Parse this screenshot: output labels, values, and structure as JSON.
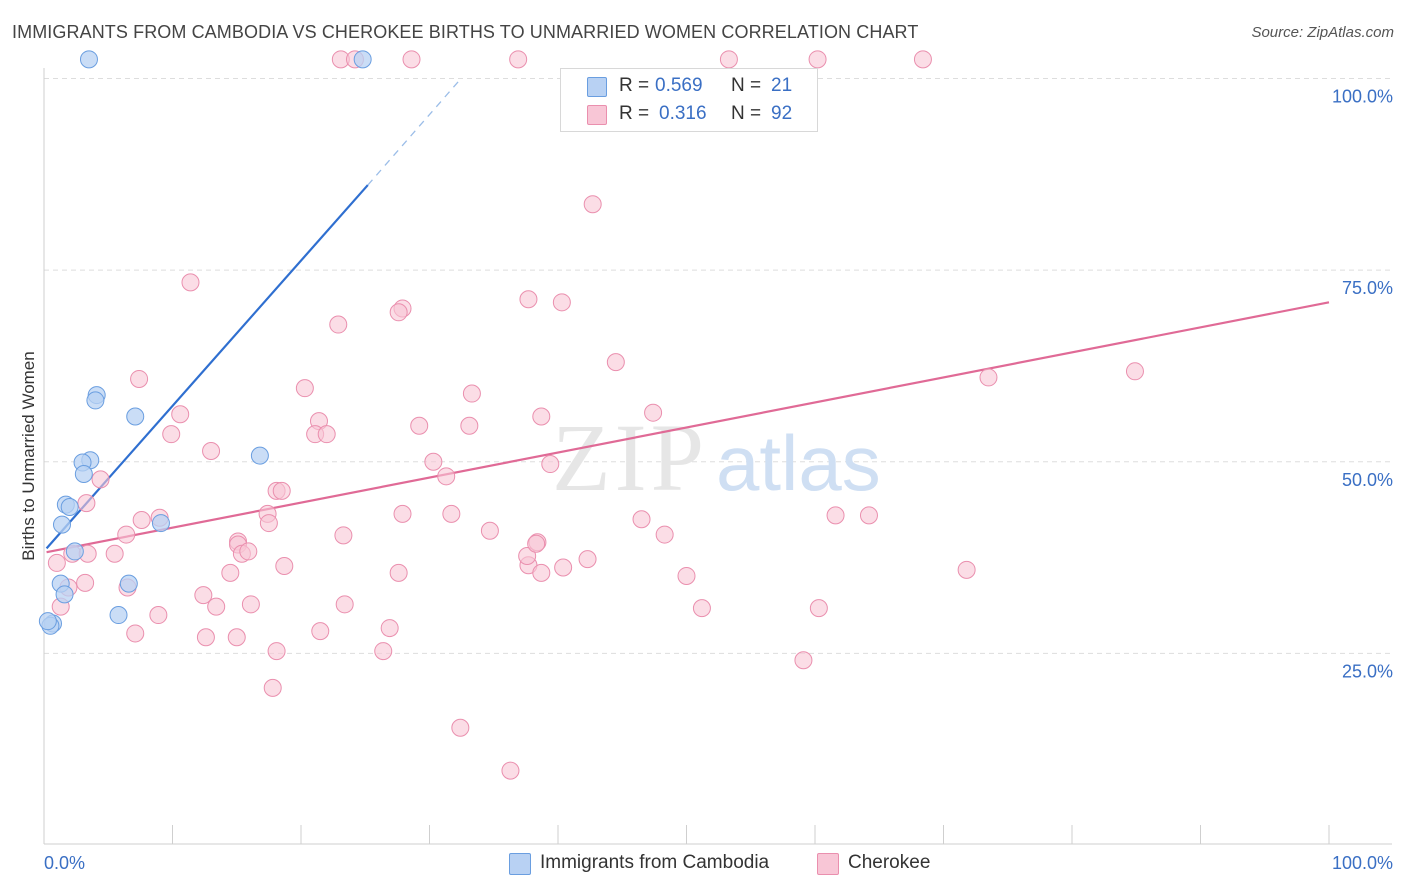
{
  "title": "IMMIGRANTS FROM CAMBODIA VS CHEROKEE BIRTHS TO UNMARRIED WOMEN CORRELATION CHART",
  "source": "Source: ZipAtlas.com",
  "watermark": {
    "zip": "ZIP",
    "atlas": "atlas"
  },
  "legend": {
    "r_label": "R =",
    "n_label": "N =",
    "series1": {
      "r": "0.569",
      "n": "21"
    },
    "series2": {
      "r": "0.316",
      "n": "92"
    }
  },
  "colors": {
    "cambodia_fill": "#b8d1f3",
    "cambodia_stroke": "#6a9ee0",
    "cambodia_line": "#2f6fd0",
    "cherokee_fill": "#f8c6d6",
    "cherokee_stroke": "#ea8fae",
    "cherokee_line": "#e06a96",
    "axis_text": "#3a6fc4",
    "grid": "#dddddd"
  },
  "chart_data": {
    "type": "scatter",
    "title": "IMMIGRANTS FROM CAMBODIA VS CHEROKEE BIRTHS TO UNMARRIED WOMEN CORRELATION CHART",
    "xlabel": "",
    "ylabel": "Births to Unmarried Women",
    "xlim": [
      0,
      100
    ],
    "ylim": [
      0,
      105
    ],
    "x_tick_labels": [
      "0.0%",
      "100.0%"
    ],
    "y_ticks": [
      25,
      50,
      75,
      100
    ],
    "y_tick_labels": [
      "25.0%",
      "50.0%",
      "75.0%",
      "100.0%"
    ],
    "grid": true,
    "legend_position": "top-center",
    "series": [
      {
        "name": "Immigrants from Cambodia",
        "r": 0.569,
        "n": 21,
        "points": [
          [
            3.5,
            102.5
          ],
          [
            24.8,
            102.5
          ],
          [
            4.1,
            58.7
          ],
          [
            4.0,
            58.0
          ],
          [
            7.1,
            55.9
          ],
          [
            16.8,
            50.8
          ],
          [
            3.6,
            50.2
          ],
          [
            3.0,
            49.9
          ],
          [
            3.1,
            48.4
          ],
          [
            1.7,
            44.4
          ],
          [
            2.0,
            44.1
          ],
          [
            9.1,
            42.0
          ],
          [
            1.4,
            41.8
          ],
          [
            2.4,
            38.3
          ],
          [
            1.3,
            34.1
          ],
          [
            1.6,
            32.7
          ],
          [
            6.6,
            34.1
          ],
          [
            5.8,
            30.0
          ],
          [
            0.7,
            28.9
          ],
          [
            0.5,
            28.6
          ],
          [
            0.3,
            29.2
          ]
        ],
        "trend": {
          "x1": 0.2,
          "y1": 38.7,
          "x2": 25.2,
          "y2": 86.1,
          "dash_to_x": 32.3,
          "dash_to_y": 99.7
        }
      },
      {
        "name": "Cherokee",
        "r": 0.316,
        "n": 92,
        "points": [
          [
            23.1,
            102.5
          ],
          [
            24.2,
            102.5
          ],
          [
            28.6,
            102.5
          ],
          [
            36.9,
            102.5
          ],
          [
            53.3,
            102.5
          ],
          [
            60.2,
            102.5
          ],
          [
            68.4,
            102.5
          ],
          [
            42.7,
            83.6
          ],
          [
            11.4,
            73.4
          ],
          [
            37.7,
            71.2
          ],
          [
            40.3,
            70.8
          ],
          [
            27.9,
            70.0
          ],
          [
            27.6,
            69.5
          ],
          [
            22.9,
            67.9
          ],
          [
            7.4,
            60.8
          ],
          [
            73.5,
            61.0
          ],
          [
            84.9,
            61.8
          ],
          [
            20.3,
            59.6
          ],
          [
            33.3,
            58.9
          ],
          [
            10.6,
            56.2
          ],
          [
            21.4,
            55.3
          ],
          [
            38.7,
            55.9
          ],
          [
            29.2,
            54.7
          ],
          [
            33.1,
            54.7
          ],
          [
            47.4,
            56.4
          ],
          [
            9.9,
            53.6
          ],
          [
            21.1,
            53.6
          ],
          [
            22.0,
            53.6
          ],
          [
            13.0,
            51.4
          ],
          [
            30.3,
            50.0
          ],
          [
            39.4,
            49.7
          ],
          [
            31.3,
            48.1
          ],
          [
            4.4,
            47.7
          ],
          [
            18.1,
            46.2
          ],
          [
            18.5,
            46.2
          ],
          [
            3.3,
            44.6
          ],
          [
            9.0,
            42.7
          ],
          [
            17.4,
            43.2
          ],
          [
            27.9,
            43.2
          ],
          [
            31.7,
            43.2
          ],
          [
            61.6,
            43.0
          ],
          [
            64.2,
            43.0
          ],
          [
            7.6,
            42.4
          ],
          [
            17.5,
            42.0
          ],
          [
            6.4,
            40.5
          ],
          [
            15.1,
            39.6
          ],
          [
            15.1,
            39.2
          ],
          [
            23.3,
            40.4
          ],
          [
            34.7,
            41.0
          ],
          [
            38.4,
            39.5
          ],
          [
            2.2,
            38.0
          ],
          [
            3.4,
            38.0
          ],
          [
            5.5,
            38.0
          ],
          [
            15.4,
            38.0
          ],
          [
            15.9,
            38.3
          ],
          [
            37.7,
            36.5
          ],
          [
            1.0,
            36.8
          ],
          [
            14.5,
            35.5
          ],
          [
            18.7,
            36.4
          ],
          [
            40.4,
            36.2
          ],
          [
            42.3,
            37.3
          ],
          [
            37.6,
            37.7
          ],
          [
            38.3,
            39.3
          ],
          [
            48.3,
            40.5
          ],
          [
            46.5,
            42.5
          ],
          [
            6.5,
            33.6
          ],
          [
            3.2,
            34.2
          ],
          [
            1.9,
            33.6
          ],
          [
            12.4,
            32.6
          ],
          [
            13.4,
            31.1
          ],
          [
            16.1,
            31.4
          ],
          [
            1.3,
            31.1
          ],
          [
            23.4,
            31.4
          ],
          [
            27.6,
            35.5
          ],
          [
            38.7,
            35.5
          ],
          [
            21.5,
            27.9
          ],
          [
            26.9,
            28.3
          ],
          [
            12.6,
            27.1
          ],
          [
            15.0,
            27.1
          ],
          [
            8.9,
            30.0
          ],
          [
            7.1,
            27.6
          ],
          [
            50.0,
            35.1
          ],
          [
            71.8,
            35.9
          ],
          [
            51.2,
            30.9
          ],
          [
            60.3,
            30.9
          ],
          [
            59.1,
            24.1
          ],
          [
            18.1,
            25.3
          ],
          [
            26.4,
            25.3
          ],
          [
            17.8,
            20.5
          ],
          [
            32.4,
            15.3
          ],
          [
            36.3,
            9.7
          ],
          [
            44.5,
            63.0
          ]
        ],
        "trend": {
          "x1": 0.2,
          "y1": 38.2,
          "x2": 100,
          "y2": 70.8
        }
      }
    ]
  }
}
